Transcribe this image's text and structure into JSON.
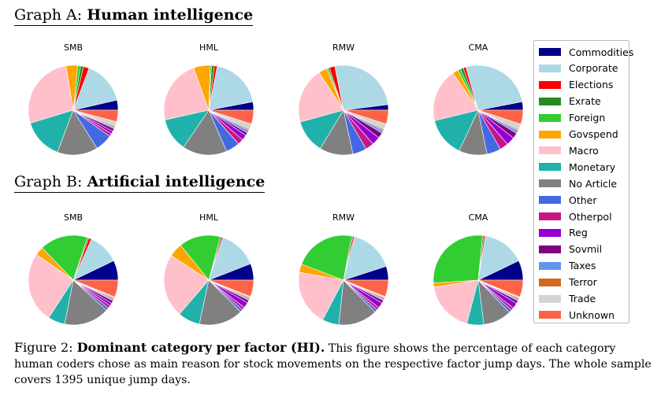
{
  "headings": {
    "a_prefix": "Graph A: ",
    "a_title": "Human intelligence",
    "b_prefix": "Graph B: ",
    "b_title": "Artificial intelligence"
  },
  "legend": [
    {
      "name": "Commodities",
      "color": "#00008b"
    },
    {
      "name": "Corporate",
      "color": "#add8e6"
    },
    {
      "name": "Elections",
      "color": "#ff0000"
    },
    {
      "name": "Exrate",
      "color": "#228b22"
    },
    {
      "name": "Foreign",
      "color": "#32cd32"
    },
    {
      "name": "Govspend",
      "color": "#ffa500"
    },
    {
      "name": "Macro",
      "color": "#ffc0cb"
    },
    {
      "name": "Monetary",
      "color": "#20b2aa"
    },
    {
      "name": "No Article",
      "color": "#808080"
    },
    {
      "name": "Other",
      "color": "#4169e1"
    },
    {
      "name": "Otherpol",
      "color": "#c71585"
    },
    {
      "name": "Reg",
      "color": "#9400d3"
    },
    {
      "name": "Sovmil",
      "color": "#800080"
    },
    {
      "name": "Taxes",
      "color": "#6495ed"
    },
    {
      "name": "Terror",
      "color": "#d2691e"
    },
    {
      "name": "Trade",
      "color": "#d3d3d3"
    },
    {
      "name": "Unknown",
      "color": "#ff6347"
    }
  ],
  "chart_data": [
    {
      "type": "pie",
      "group": "Human intelligence",
      "title": "SMB",
      "categories": [
        "Commodities",
        "Corporate",
        "Elections",
        "Exrate",
        "Foreign",
        "Govspend",
        "Macro",
        "Monetary",
        "No Article",
        "Other",
        "Otherpol",
        "Reg",
        "Sovmil",
        "Taxes",
        "Terror",
        "Trade",
        "Unknown"
      ],
      "values": [
        3.5,
        15,
        2,
        1,
        1,
        4,
        26,
        14,
        14,
        6,
        1,
        1,
        1,
        0.5,
        0.5,
        1.5,
        4
      ]
    },
    {
      "type": "pie",
      "group": "Human intelligence",
      "title": "HML",
      "categories": [
        "Commodities",
        "Corporate",
        "Elections",
        "Exrate",
        "Foreign",
        "Govspend",
        "Macro",
        "Monetary",
        "No Article",
        "Other",
        "Otherpol",
        "Reg",
        "Sovmil",
        "Taxes",
        "Terror",
        "Trade",
        "Unknown"
      ],
      "values": [
        3,
        19,
        1,
        1,
        0.5,
        6,
        23,
        12,
        16,
        5,
        2,
        2,
        1,
        1,
        0.5,
        2,
        5
      ]
    },
    {
      "type": "pie",
      "group": "Human intelligence",
      "title": "RMW",
      "categories": [
        "Commodities",
        "Corporate",
        "Elections",
        "Exrate",
        "Foreign",
        "Govspend",
        "Macro",
        "Monetary",
        "No Article",
        "Other",
        "Otherpol",
        "Reg",
        "Sovmil",
        "Taxes",
        "Terror",
        "Trade",
        "Unknown"
      ],
      "values": [
        2,
        26,
        2,
        0.5,
        0.5,
        3,
        20,
        12,
        12,
        5,
        3,
        3,
        2,
        1,
        0.5,
        2,
        5
      ]
    },
    {
      "type": "pie",
      "group": "Human intelligence",
      "title": "CMA",
      "categories": [
        "Commodities",
        "Corporate",
        "Elections",
        "Exrate",
        "Foreign",
        "Govspend",
        "Macro",
        "Monetary",
        "No Article",
        "Other",
        "Otherpol",
        "Reg",
        "Sovmil",
        "Taxes",
        "Terror",
        "Trade",
        "Unknown"
      ],
      "values": [
        3,
        26,
        1,
        1,
        1,
        2,
        19,
        14,
        10,
        5,
        3,
        3,
        2,
        1,
        0.5,
        2,
        5
      ]
    },
    {
      "type": "pie",
      "group": "Artificial intelligence",
      "title": "SMB",
      "categories": [
        "Commodities",
        "Corporate",
        "Elections",
        "Exrate",
        "Foreign",
        "Govspend",
        "Macro",
        "Monetary",
        "No Article",
        "Other",
        "Otherpol",
        "Reg",
        "Sovmil",
        "Taxes",
        "Terror",
        "Trade",
        "Unknown"
      ],
      "values": [
        7,
        11,
        1,
        0.5,
        17,
        3,
        25,
        6,
        16,
        1,
        1,
        1,
        1,
        0.5,
        0.5,
        0.5,
        6
      ]
    },
    {
      "type": "pie",
      "group": "Artificial intelligence",
      "title": "HML",
      "categories": [
        "Commodities",
        "Corporate",
        "Elections",
        "Exrate",
        "Foreign",
        "Govspend",
        "Macro",
        "Monetary",
        "No Article",
        "Other",
        "Otherpol",
        "Reg",
        "Sovmil",
        "Taxes",
        "Terror",
        "Trade",
        "Unknown"
      ],
      "values": [
        6,
        14,
        0.5,
        0.5,
        15,
        5,
        23,
        8,
        16,
        1,
        1,
        2,
        1,
        0.5,
        0.5,
        0.5,
        6
      ]
    },
    {
      "type": "pie",
      "group": "Artificial intelligence",
      "title": "RMW",
      "categories": [
        "Commodities",
        "Corporate",
        "Elections",
        "Exrate",
        "Foreign",
        "Govspend",
        "Macro",
        "Monetary",
        "No Article",
        "Other",
        "Otherpol",
        "Reg",
        "Sovmil",
        "Taxes",
        "Terror",
        "Trade",
        "Unknown"
      ],
      "values": [
        5,
        16,
        0.5,
        0.5,
        22,
        3,
        20,
        6,
        14,
        1,
        1,
        2,
        1,
        0.5,
        0.5,
        0.5,
        6
      ]
    },
    {
      "type": "pie",
      "group": "Artificial intelligence",
      "title": "CMA",
      "categories": [
        "Commodities",
        "Corporate",
        "Elections",
        "Exrate",
        "Foreign",
        "Govspend",
        "Macro",
        "Monetary",
        "No Article",
        "Other",
        "Otherpol",
        "Reg",
        "Sovmil",
        "Taxes",
        "Terror",
        "Trade",
        "Unknown"
      ],
      "values": [
        7,
        15,
        0.5,
        0.5,
        27,
        1.5,
        18,
        6,
        10,
        1,
        1,
        2,
        1,
        0.5,
        0.5,
        0.5,
        6
      ]
    }
  ],
  "caption": {
    "label": "Figure 2: ",
    "title": "Dominant category per factor (HI).",
    "text": " This figure shows the percentage of each category human coders chose as main reason for stock movements on the respective factor jump days. The whole sample covers 1395 unique jump days."
  }
}
